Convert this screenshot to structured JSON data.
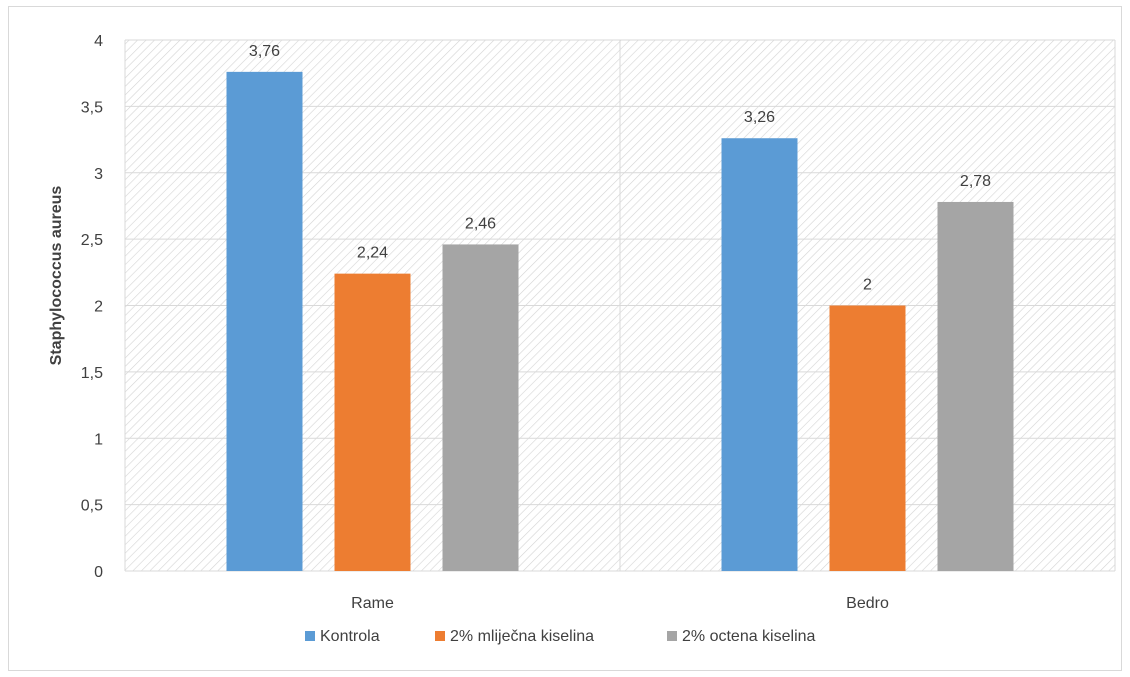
{
  "chart_data": {
    "type": "bar",
    "title": "",
    "xlabel": "",
    "ylabel": "Staphylococcus aureus",
    "categories": [
      "Rame",
      "Bedro"
    ],
    "series": [
      {
        "name": "Kontrola",
        "values": [
          3.76,
          3.26
        ],
        "labels": [
          "3,76",
          "3,26"
        ],
        "color": "#5b9bd5"
      },
      {
        "name": "2% mliječna kiselina",
        "values": [
          2.24,
          2.0
        ],
        "labels": [
          "2,24",
          "2"
        ],
        "color": "#ed7d31"
      },
      {
        "name": "2% octena kiselina",
        "values": [
          2.46,
          2.78
        ],
        "labels": [
          "2,46",
          "2,78"
        ],
        "color": "#a5a5a5"
      }
    ],
    "ylim": [
      0,
      4
    ],
    "yticks": [
      0,
      0.5,
      1,
      1.5,
      2,
      2.5,
      3,
      3.5,
      4
    ],
    "ytick_labels": [
      "0",
      "0,5",
      "1",
      "1,5",
      "2",
      "2,5",
      "3",
      "3,5",
      "4"
    ],
    "grid": true,
    "plot_background": "diagonal-hatch",
    "legend_position": "bottom"
  }
}
